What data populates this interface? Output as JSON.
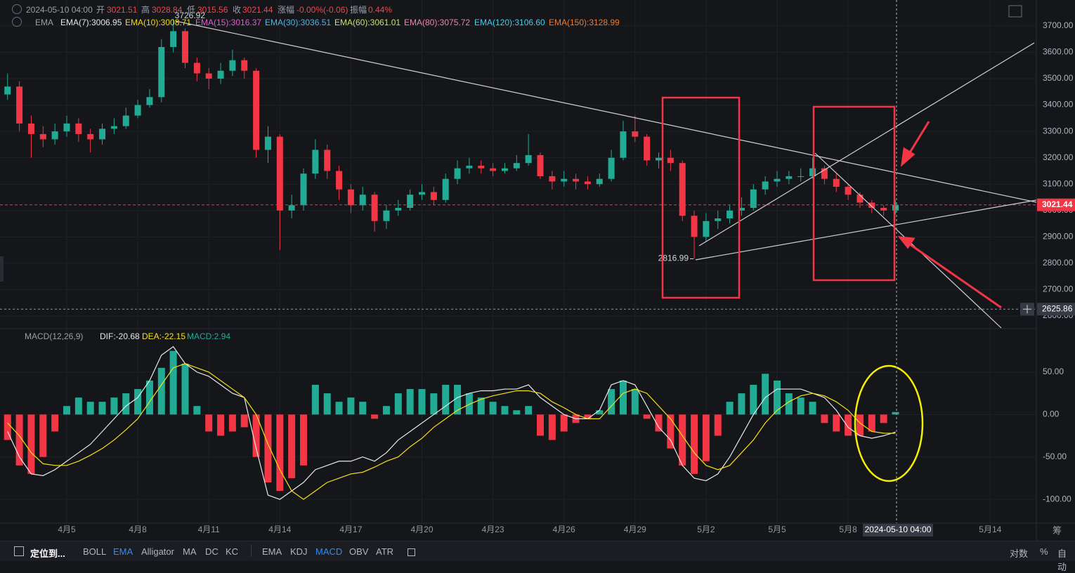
{
  "ui": {
    "header": [
      "2024-05-10 04:00",
      "开",
      "3021.51",
      "高",
      "3028.84",
      "低",
      "3015.56",
      "收",
      "3021.44",
      "涨幅",
      "-0.00%(-0.06)",
      "振幅",
      "0.44%"
    ],
    "ema_legend": [
      "EMA",
      "EMA(7):3006.95",
      "EMA(10):3008.71",
      "EMA(15):3016.37",
      "EMA(30):3036.51",
      "EMA(60):3061.01",
      "EMA(80):3075.72",
      "EMA(120):3106.60",
      "EMA(150):3128.99"
    ],
    "macd_legend": [
      "MACD(12,26,9)",
      "DIF:-20.68",
      "DEA:-22.15",
      "MACD:2.94"
    ],
    "toolbar": [
      "定位到...",
      "BOLL",
      "EMA",
      "Alligator",
      "MA",
      "DC",
      "KC",
      "EMA",
      "KDJ",
      "MACD",
      "OBV",
      "ATR"
    ],
    "right_tools": [
      "对数",
      "%",
      "自动"
    ],
    "axis_corner": "筹"
  },
  "chart_data": [
    {
      "type": "candlestick",
      "up_color": "#22ab94",
      "down_color": "#f23645",
      "grid": true,
      "ylim": [
        2560,
        3785
      ],
      "yticks": [
        {
          "value": 3700,
          "label": "3700.00"
        },
        {
          "value": 3600,
          "label": "3600.00"
        },
        {
          "value": 3500,
          "label": "3500.00"
        },
        {
          "value": 3400,
          "label": "3400.00"
        },
        {
          "value": 3300,
          "label": "3300.00"
        },
        {
          "value": 3200,
          "label": "3200.00"
        },
        {
          "value": 3100,
          "label": "3100.00"
        },
        {
          "value": 3000,
          "label": "3000.00"
        },
        {
          "value": 2900,
          "label": "2900.00"
        },
        {
          "value": 2800,
          "label": "2800.00"
        },
        {
          "value": 2700,
          "label": "2700.00"
        },
        {
          "value": 2600,
          "label": "2600.00"
        }
      ],
      "open": [
        3440,
        3470,
        3330,
        3290,
        3270,
        3300,
        3330,
        3290,
        3270,
        3310,
        3320,
        3360,
        3400,
        3430,
        3620,
        3680,
        3560,
        3520,
        3500,
        3530,
        3570,
        3530,
        3230,
        3280,
        3000,
        3020,
        3140,
        3230,
        3150,
        3080,
        3020,
        3060,
        2960,
        3000,
        3010,
        3060,
        3070,
        3040,
        3120,
        3160,
        3170,
        3160,
        3150,
        3160,
        3180,
        3210,
        3130,
        3110,
        3120,
        3110,
        3100,
        3120,
        3200,
        3300,
        3280,
        3190,
        3200,
        3180,
        2980,
        2900,
        2960,
        2970,
        3000,
        3010,
        3080,
        3110,
        3120,
        3130,
        3130,
        3160,
        3120,
        3090,
        3060,
        3030,
        3010,
        3000,
        null,
        null,
        null,
        null,
        null,
        null,
        null,
        null,
        null,
        null,
        null,
        null
      ],
      "high": [
        3520,
        3490,
        3360,
        3320,
        3330,
        3360,
        3350,
        3310,
        3330,
        3350,
        3390,
        3420,
        3460,
        3650,
        3726.92,
        3690,
        3580,
        3540,
        3560,
        3610,
        3580,
        3540,
        3320,
        3290,
        3060,
        3160,
        3270,
        3250,
        3170,
        3100,
        3090,
        3070,
        3020,
        3040,
        3080,
        3100,
        3090,
        3140,
        3190,
        3200,
        3190,
        3180,
        3180,
        3210,
        3290,
        3220,
        3150,
        3150,
        3140,
        3130,
        3140,
        3230,
        3340,
        3360,
        3290,
        3220,
        3230,
        3190,
        3000,
        2990,
        3000,
        3020,
        3050,
        3100,
        3130,
        3150,
        3150,
        3160,
        3200,
        3170,
        3140,
        3100,
        3070,
        3040,
        3020,
        3040,
        null,
        null,
        null,
        null,
        null,
        null,
        null,
        null,
        null,
        null,
        null,
        null
      ],
      "low": [
        3420,
        3300,
        3200,
        3240,
        3250,
        3280,
        3260,
        3220,
        3250,
        3290,
        3310,
        3350,
        3390,
        3410,
        3600,
        3540,
        3490,
        3460,
        3480,
        3510,
        3500,
        3200,
        3180,
        2850,
        2970,
        3000,
        3120,
        3120,
        3040,
        2990,
        3000,
        2920,
        2930,
        2980,
        3000,
        3040,
        3020,
        3030,
        3100,
        3140,
        3140,
        3130,
        3140,
        3150,
        3170,
        3120,
        3080,
        3090,
        3080,
        3080,
        3090,
        3110,
        3190,
        3260,
        3170,
        3160,
        3150,
        2960,
        2816.99,
        2880,
        2930,
        2950,
        2980,
        3000,
        3060,
        3090,
        3100,
        3110,
        3120,
        3100,
        3070,
        3040,
        3010,
        2990,
        2980,
        2985,
        null,
        null,
        null,
        null,
        null,
        null,
        null,
        null,
        null,
        null,
        null,
        null
      ],
      "close": [
        3470,
        3330,
        3290,
        3270,
        3300,
        3330,
        3290,
        3270,
        3310,
        3320,
        3360,
        3400,
        3430,
        3620,
        3680,
        3560,
        3520,
        3500,
        3530,
        3570,
        3530,
        3230,
        3280,
        3000,
        3020,
        3140,
        3230,
        3150,
        3080,
        3020,
        3060,
        2960,
        3000,
        3010,
        3060,
        3070,
        3040,
        3120,
        3160,
        3170,
        3160,
        3150,
        3160,
        3180,
        3210,
        3130,
        3110,
        3120,
        3110,
        3100,
        3120,
        3200,
        3300,
        3280,
        3190,
        3200,
        3180,
        2980,
        2900,
        2960,
        2970,
        3000,
        3010,
        3080,
        3110,
        3120,
        3130,
        3130,
        3160,
        3120,
        3090,
        3060,
        3030,
        3010,
        3000,
        3021,
        null,
        null,
        null,
        null,
        null,
        null,
        null,
        null,
        null,
        null,
        null,
        null
      ],
      "high_label": 3726.92,
      "low_label": 2816.99,
      "last_price": 3021.44,
      "crosshair_price": 2625.86
    },
    {
      "type": "macd",
      "up_color": "#22ab94",
      "down_color": "#f23645",
      "dif_color": "#e8e8e8",
      "dea_color": "#f5e11a",
      "grid": true,
      "ylim": [
        -128,
        83
      ],
      "yticks": [
        {
          "value": 50,
          "label": "50.00"
        },
        {
          "value": 0,
          "label": "0.00"
        },
        {
          "value": -50,
          "label": "-50.00"
        },
        {
          "value": -100,
          "label": "-100.00"
        }
      ],
      "categories": [
        null,
        null,
        null,
        null,
        null,
        "4月5",
        null,
        null,
        null,
        null,
        null,
        "4月8",
        null,
        null,
        null,
        null,
        null,
        "4月11",
        null,
        null,
        null,
        null,
        null,
        "4月14",
        null,
        null,
        null,
        null,
        null,
        "4月17",
        null,
        null,
        null,
        null,
        null,
        "4月20",
        null,
        null,
        null,
        null,
        null,
        "4月23",
        null,
        null,
        null,
        null,
        null,
        "4月26",
        null,
        null,
        null,
        null,
        null,
        "4月29",
        null,
        null,
        null,
        null,
        null,
        "5月2",
        null,
        null,
        null,
        null,
        null,
        "5月5",
        null,
        null,
        null,
        null,
        null,
        "5月8",
        null,
        null,
        null,
        null,
        null,
        null,
        null,
        null,
        null,
        null,
        null,
        "5月14",
        null,
        null,
        null,
        null
      ],
      "hist": [
        -30,
        -60,
        -70,
        -50,
        -20,
        10,
        20,
        15,
        15,
        20,
        25,
        30,
        40,
        55,
        75,
        60,
        10,
        -20,
        -25,
        -20,
        -15,
        -50,
        -80,
        -90,
        -75,
        -60,
        35,
        25,
        15,
        20,
        15,
        -5,
        10,
        25,
        30,
        30,
        25,
        35,
        35,
        25,
        20,
        15,
        10,
        5,
        10,
        -25,
        -30,
        -20,
        -10,
        -5,
        5,
        30,
        40,
        30,
        -5,
        -20,
        -40,
        -60,
        -70,
        -55,
        -25,
        15,
        25,
        35,
        48,
        40,
        25,
        20,
        15,
        -10,
        -20,
        -25,
        -25,
        -20,
        -10,
        2.94,
        null,
        null,
        null,
        null,
        null,
        null,
        null,
        null,
        null,
        null,
        null,
        null
      ],
      "dif": [
        -20,
        -50,
        -70,
        -72,
        -65,
        -55,
        -45,
        -35,
        -20,
        -5,
        10,
        20,
        40,
        70,
        80,
        60,
        50,
        45,
        35,
        25,
        20,
        -40,
        -95,
        -100,
        -90,
        -80,
        -65,
        -60,
        -55,
        -55,
        -50,
        -55,
        -45,
        -30,
        -20,
        -10,
        0,
        10,
        20,
        25,
        28,
        28,
        30,
        30,
        35,
        20,
        10,
        0,
        -5,
        -5,
        5,
        35,
        40,
        35,
        10,
        -15,
        -30,
        -60,
        -75,
        -78,
        -70,
        -50,
        -25,
        0,
        20,
        30,
        30,
        30,
        25,
        20,
        5,
        -15,
        -25,
        -28,
        -25,
        -20.68,
        null,
        null,
        null,
        null,
        null,
        null,
        null,
        null,
        null,
        null,
        null,
        null
      ],
      "dea": [
        -10,
        -25,
        -45,
        -58,
        -60,
        -60,
        -55,
        -48,
        -40,
        -30,
        -18,
        -5,
        15,
        35,
        55,
        60,
        55,
        50,
        40,
        30,
        20,
        0,
        -35,
        -65,
        -90,
        -100,
        -90,
        -80,
        -75,
        -70,
        -68,
        -62,
        -55,
        -50,
        -38,
        -28,
        -15,
        -5,
        5,
        12,
        18,
        22,
        25,
        28,
        28,
        25,
        15,
        8,
        0,
        -5,
        -5,
        10,
        25,
        30,
        25,
        10,
        -5,
        -25,
        -45,
        -60,
        -65,
        -60,
        -45,
        -30,
        -10,
        5,
        15,
        22,
        25,
        22,
        15,
        5,
        -10,
        -20,
        -22,
        -22.15,
        null,
        null,
        null,
        null,
        null,
        null,
        null,
        null,
        null,
        null,
        null,
        null
      ],
      "crosshair_time": "2024-05-10 04:00"
    }
  ]
}
